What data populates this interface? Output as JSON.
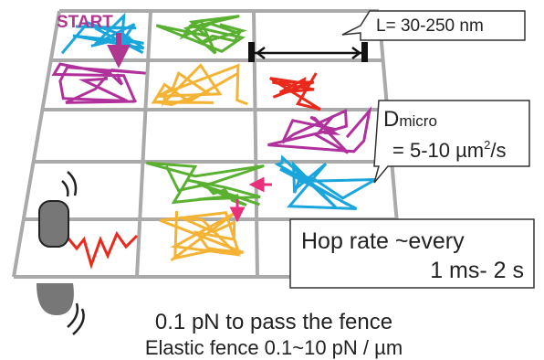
{
  "start": "START",
  "length_label": "L= 30-250 nm",
  "dmicro": {
    "symbol": "D",
    "subscript": "micro",
    "value_prefix": "= 5-10 µm",
    "value_exponent": "2",
    "value_suffix": "/s"
  },
  "hop_rate": [
    "Hop rate ~every",
    "1 ms- 2 s"
  ],
  "captions": [
    "0.1 pN to pass the fence",
    "Elastic fence   0.1~10 pN / µm"
  ]
}
